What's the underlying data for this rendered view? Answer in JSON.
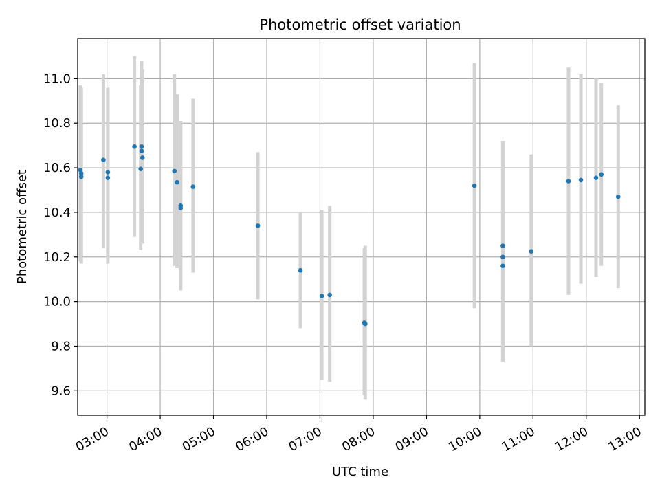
{
  "chart_data": {
    "type": "scatter",
    "title": "Photometric offset variation",
    "xlabel": "UTC time",
    "ylabel": "Photometric offset",
    "x_ticks": [
      "03:00",
      "04:00",
      "05:00",
      "06:00",
      "07:00",
      "08:00",
      "09:00",
      "10:00",
      "11:00",
      "12:00",
      "13:00"
    ],
    "y_ticks": [
      "9.6",
      "9.8",
      "10.0",
      "10.2",
      "10.4",
      "10.6",
      "10.8",
      "11.0"
    ],
    "xlim": [
      "02:27",
      "13:06"
    ],
    "ylim": [
      9.49,
      11.18
    ],
    "grid": true,
    "point_color": "#1f77b4",
    "errorbar_color": "#d3d3d3",
    "points": [
      {
        "x": "02:30",
        "y": 10.59,
        "err_low": 10.18,
        "err_high": 10.97
      },
      {
        "x": "02:31",
        "y": 10.575,
        "err_low": 10.17,
        "err_high": 10.96
      },
      {
        "x": "02:31",
        "y": 10.56,
        "err_low": 10.17,
        "err_high": 10.95
      },
      {
        "x": "02:56",
        "y": 10.635,
        "err_low": 10.24,
        "err_high": 11.02
      },
      {
        "x": "03:01",
        "y": 10.58,
        "err_low": 10.2,
        "err_high": 10.96
      },
      {
        "x": "03:01",
        "y": 10.555,
        "err_low": 10.17,
        "err_high": 10.95
      },
      {
        "x": "03:31",
        "y": 10.695,
        "err_low": 10.29,
        "err_high": 11.1
      },
      {
        "x": "03:38",
        "y": 10.595,
        "err_low": 10.23,
        "err_high": 10.97
      },
      {
        "x": "03:39",
        "y": 10.695,
        "err_low": 10.28,
        "err_high": 11.08
      },
      {
        "x": "03:39",
        "y": 10.675,
        "err_low": 10.27,
        "err_high": 11.05
      },
      {
        "x": "03:40",
        "y": 10.645,
        "err_low": 10.26,
        "err_high": 11.04
      },
      {
        "x": "04:16",
        "y": 10.585,
        "err_low": 10.16,
        "err_high": 11.02
      },
      {
        "x": "04:19",
        "y": 10.535,
        "err_low": 10.15,
        "err_high": 10.93
      },
      {
        "x": "04:23",
        "y": 10.43,
        "err_low": 10.05,
        "err_high": 10.81
      },
      {
        "x": "04:23",
        "y": 10.42,
        "err_low": 10.05,
        "err_high": 10.81
      },
      {
        "x": "04:37",
        "y": 10.515,
        "err_low": 10.13,
        "err_high": 10.91
      },
      {
        "x": "05:50",
        "y": 10.34,
        "err_low": 10.01,
        "err_high": 10.67
      },
      {
        "x": "06:38",
        "y": 10.14,
        "err_low": 9.88,
        "err_high": 10.4
      },
      {
        "x": "07:02",
        "y": 10.025,
        "err_low": 9.65,
        "err_high": 10.41
      },
      {
        "x": "07:11",
        "y": 10.03,
        "err_low": 9.64,
        "err_high": 10.43
      },
      {
        "x": "07:50",
        "y": 9.905,
        "err_low": 9.58,
        "err_high": 10.24
      },
      {
        "x": "07:51",
        "y": 9.9,
        "err_low": 9.56,
        "err_high": 10.25
      },
      {
        "x": "09:54",
        "y": 10.52,
        "err_low": 9.97,
        "err_high": 11.07
      },
      {
        "x": "10:26",
        "y": 10.25,
        "err_low": 9.73,
        "err_high": 10.72
      },
      {
        "x": "10:26",
        "y": 10.2,
        "err_low": 9.73,
        "err_high": 10.72
      },
      {
        "x": "10:26",
        "y": 10.16,
        "err_low": 9.73,
        "err_high": 10.72
      },
      {
        "x": "10:58",
        "y": 10.225,
        "err_low": 9.8,
        "err_high": 10.66
      },
      {
        "x": "11:40",
        "y": 10.54,
        "err_low": 10.03,
        "err_high": 11.05
      },
      {
        "x": "11:54",
        "y": 10.545,
        "err_low": 10.08,
        "err_high": 11.02
      },
      {
        "x": "12:11",
        "y": 10.555,
        "err_low": 10.11,
        "err_high": 11.0
      },
      {
        "x": "12:17",
        "y": 10.57,
        "err_low": 10.16,
        "err_high": 10.98
      },
      {
        "x": "12:36",
        "y": 10.47,
        "err_low": 10.06,
        "err_high": 10.88
      }
    ]
  }
}
